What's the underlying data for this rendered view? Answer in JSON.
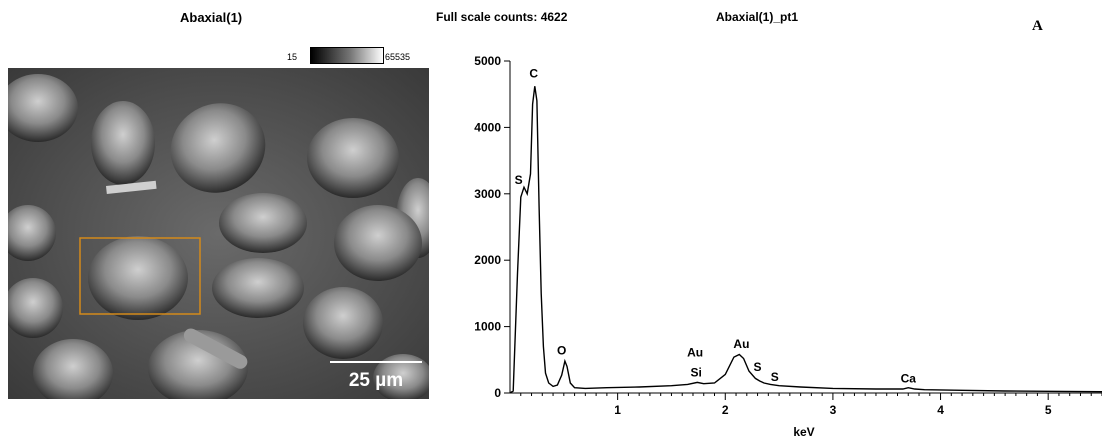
{
  "panel_letter": "A",
  "image": {
    "title": "Abaxial(1)",
    "colorbar_min": "15",
    "colorbar_max": "65535",
    "scale_bar_label": "25 µm"
  },
  "chart_data": {
    "type": "line",
    "title": "Abaxial(1)_pt1",
    "full_scale_label": "Full scale counts: 4622",
    "xlabel": "keV",
    "ylabel": "",
    "xlim": [
      0,
      5.5
    ],
    "ylim": [
      0,
      5000
    ],
    "x_ticks": [
      1,
      2,
      3,
      4,
      5
    ],
    "y_ticks": [
      0,
      1000,
      2000,
      3000,
      4000,
      5000
    ],
    "series": [
      {
        "x": [
          0.0,
          0.03,
          0.07,
          0.1,
          0.13,
          0.16,
          0.19,
          0.21,
          0.23,
          0.25,
          0.27,
          0.29,
          0.31,
          0.33,
          0.36,
          0.4,
          0.44,
          0.48,
          0.51,
          0.53,
          0.56,
          0.6,
          0.7,
          0.9,
          1.2,
          1.5,
          1.65,
          1.74,
          1.8,
          1.9,
          2.0,
          2.08,
          2.13,
          2.17,
          2.22,
          2.28,
          2.32,
          2.36,
          2.42,
          2.5,
          2.7,
          3.0,
          3.4,
          3.65,
          3.7,
          3.76,
          3.85,
          4.2,
          4.6,
          5.0,
          5.5
        ],
        "y": [
          0,
          30,
          1800,
          2950,
          3100,
          3000,
          3300,
          4350,
          4620,
          4400,
          2800,
          1500,
          700,
          300,
          150,
          100,
          120,
          270,
          480,
          400,
          150,
          80,
          70,
          80,
          90,
          110,
          130,
          160,
          140,
          150,
          280,
          540,
          580,
          520,
          330,
          220,
          180,
          150,
          130,
          110,
          90,
          70,
          60,
          60,
          80,
          60,
          50,
          40,
          30,
          25,
          20
        ]
      }
    ],
    "peak_labels": [
      {
        "text": "C",
        "x": 0.22,
        "y": 4750
      },
      {
        "text": "S",
        "x": 0.08,
        "y": 3150
      },
      {
        "text": "O",
        "x": 0.48,
        "y": 580
      },
      {
        "text": "Au",
        "x": 1.72,
        "y": 550
      },
      {
        "text": "Si",
        "x": 1.73,
        "y": 250
      },
      {
        "text": "Au",
        "x": 2.15,
        "y": 680
      },
      {
        "text": "S",
        "x": 2.3,
        "y": 330
      },
      {
        "text": "S",
        "x": 2.46,
        "y": 180
      },
      {
        "text": "Ca",
        "x": 3.7,
        "y": 160
      }
    ]
  }
}
